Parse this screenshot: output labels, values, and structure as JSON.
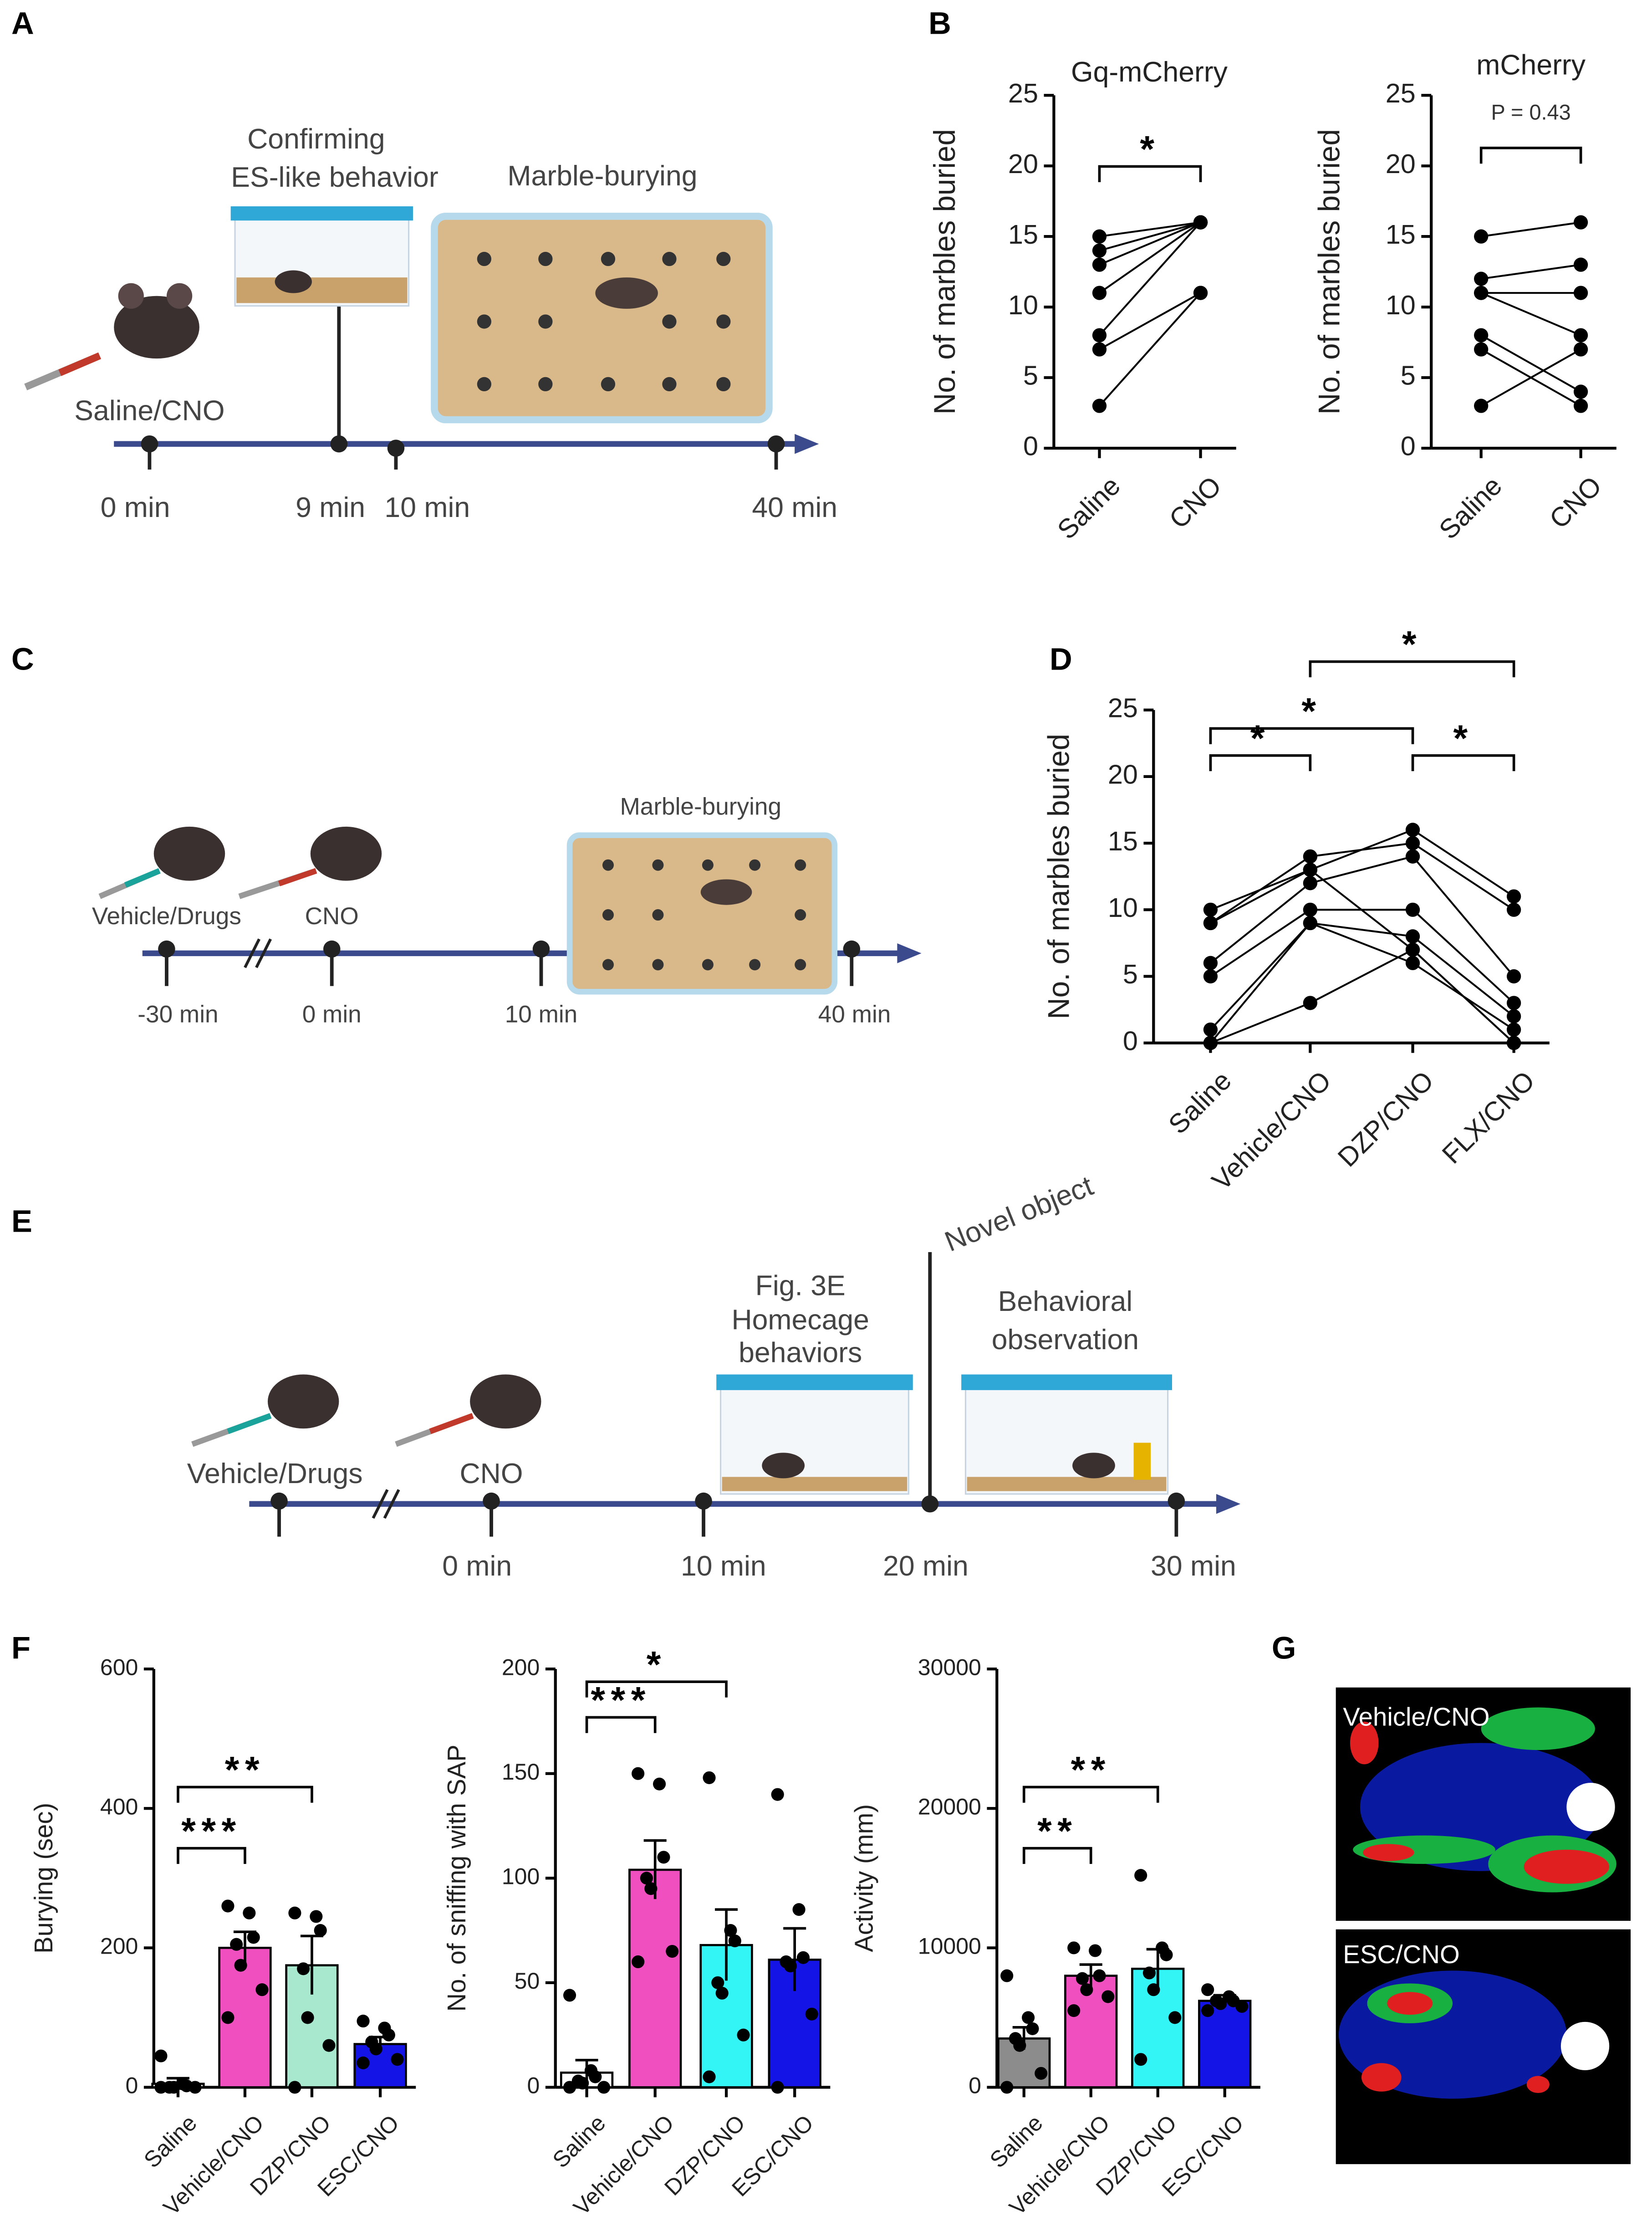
{
  "panel_labels": [
    "A",
    "B",
    "C",
    "D",
    "E",
    "F",
    "G"
  ],
  "diagrams": {
    "A": {
      "stage_1": [
        "Confirming",
        "ES-like behavior"
      ],
      "stage_2": "Marble-burying",
      "injection": "Saline/CNO",
      "times": [
        "0 min",
        "9 min",
        "10 min",
        "40 min"
      ]
    },
    "C": {
      "injection_1": "Vehicle/Drugs",
      "injection_2": "CNO",
      "stage": "Marble-burying",
      "times": [
        "-30 min",
        "0 min",
        "10 min",
        "40 min"
      ]
    },
    "E": {
      "injection_1": "Vehicle/Drugs",
      "injection_2": "CNO",
      "stage_1": [
        "Fig. 3E",
        "Homecage",
        "behaviors"
      ],
      "event": "Novel object",
      "stage_2": [
        "Behavioral",
        "observation"
      ],
      "times": [
        "0 min",
        "10 min",
        "20 min",
        "30 min"
      ]
    },
    "G": {
      "heatmap_labels": [
        "Vehicle/CNO",
        "ESC/CNO"
      ]
    }
  },
  "chart_data": [
    {
      "type": "paired",
      "title": "Gq-mCherry",
      "ylabel": "No. of marbles buried",
      "categories": [
        "Saline",
        "CNO"
      ],
      "ylim": [
        0,
        25
      ],
      "yticks": [
        0,
        5,
        10,
        15,
        20,
        25
      ],
      "color": "#000000",
      "series": [
        {
          "values": [
            15,
            16
          ]
        },
        {
          "values": [
            14,
            16
          ]
        },
        {
          "values": [
            13,
            16
          ]
        },
        {
          "values": [
            11,
            16
          ]
        },
        {
          "values": [
            8,
            16
          ]
        },
        {
          "values": [
            7,
            11
          ]
        },
        {
          "values": [
            3,
            11
          ]
        }
      ],
      "comparisons": [
        {
          "from": 0,
          "to": 1,
          "label": "*"
        }
      ]
    },
    {
      "type": "paired",
      "title": "mCherry",
      "ylabel": "No. of marbles buried",
      "categories": [
        "Saline",
        "CNO"
      ],
      "ylim": [
        0,
        25
      ],
      "yticks": [
        0,
        5,
        10,
        15,
        20,
        25
      ],
      "color": "#000000",
      "series": [
        {
          "values": [
            15,
            16
          ]
        },
        {
          "values": [
            12,
            13
          ]
        },
        {
          "values": [
            11,
            8
          ]
        },
        {
          "values": [
            11,
            11
          ]
        },
        {
          "values": [
            8,
            4
          ]
        },
        {
          "values": [
            7,
            3
          ]
        },
        {
          "values": [
            3,
            7
          ]
        }
      ],
      "comparisons": [
        {
          "from": 0,
          "to": 1,
          "label": "P = 0.43"
        }
      ]
    },
    {
      "type": "paired",
      "ylabel": "No. of marbles buried",
      "categories": [
        "Saline",
        "Vehicle/CNO",
        "DZP/CNO",
        "FLX/CNO"
      ],
      "ylim": [
        0,
        25
      ],
      "yticks": [
        0,
        5,
        10,
        15,
        20,
        25
      ],
      "color": "#000000",
      "series": [
        {
          "values": [
            10,
            13,
            16,
            11
          ]
        },
        {
          "values": [
            9,
            14,
            15,
            10
          ]
        },
        {
          "values": [
            6,
            12,
            14,
            5
          ]
        },
        {
          "values": [
            5,
            10,
            10,
            3
          ]
        },
        {
          "values": [
            1,
            9,
            8,
            2
          ]
        },
        {
          "values": [
            0,
            3,
            7,
            0
          ]
        },
        {
          "values": [
            0,
            9,
            6,
            1
          ]
        },
        {
          "values": [
            9,
            13,
            7,
            0
          ]
        }
      ],
      "comparisons": [
        {
          "from": 0,
          "to": 1,
          "label": "*"
        },
        {
          "from": 0,
          "to": 2,
          "label": "*"
        },
        {
          "from": 1,
          "to": 3,
          "label": "*"
        },
        {
          "from": 2,
          "to": 3,
          "label": "*"
        }
      ]
    },
    {
      "type": "bar_dots",
      "ylabel": "Burying (sec)",
      "categories": [
        "Saline",
        "Vehicle/CNO",
        "DZP/CNO",
        "ESC/CNO"
      ],
      "ylim": [
        0,
        600
      ],
      "yticks": [
        0,
        200,
        400,
        600
      ],
      "values": [
        5,
        200,
        175,
        62
      ],
      "errors": [
        8,
        23,
        42,
        10
      ],
      "colors": [
        "#ffffff",
        "#f04fc0",
        "#a8e8cf",
        "#1414e6"
      ],
      "points": [
        [
          45,
          5,
          2,
          0,
          0,
          0,
          0
        ],
        [
          260,
          250,
          215,
          205,
          175,
          140,
          100
        ],
        [
          250,
          245,
          225,
          170,
          100,
          60,
          0
        ],
        [
          95,
          85,
          75,
          65,
          55,
          40,
          35
        ]
      ],
      "comparisons": [
        {
          "from": 0,
          "to": 1,
          "label": "***"
        },
        {
          "from": 0,
          "to": 2,
          "label": "**"
        }
      ]
    },
    {
      "type": "bar_dots",
      "ylabel": "No. of sniffing with SAP",
      "categories": [
        "Saline",
        "Vehicle/CNO",
        "DZP/CNO",
        "ESC/CNO"
      ],
      "ylim": [
        0,
        200
      ],
      "yticks": [
        0,
        50,
        100,
        150,
        200
      ],
      "values": [
        7,
        104,
        68,
        61
      ],
      "errors": [
        6,
        14,
        17,
        15
      ],
      "colors": [
        "#ffffff",
        "#f04fc0",
        "#33f5f5",
        "#1414e6"
      ],
      "points": [
        [
          44,
          8,
          5,
          3,
          2,
          0,
          0
        ],
        [
          150,
          145,
          110,
          100,
          95,
          65,
          60
        ],
        [
          148,
          75,
          70,
          50,
          45,
          25,
          5
        ],
        [
          140,
          85,
          62,
          60,
          58,
          35,
          0
        ]
      ],
      "comparisons": [
        {
          "from": 0,
          "to": 1,
          "label": "***"
        },
        {
          "from": 0,
          "to": 2,
          "label": "*"
        }
      ]
    },
    {
      "type": "bar_dots",
      "ylabel": "Activity (mm)",
      "categories": [
        "Saline",
        "Vehicle/CNO",
        "DZP/CNO",
        "ESC/CNO"
      ],
      "ylim": [
        0,
        30000
      ],
      "yticks": [
        0,
        10000,
        20000,
        30000
      ],
      "values": [
        3500,
        8000,
        8500,
        6200
      ],
      "errors": [
        800,
        800,
        1400,
        400
      ],
      "colors": [
        "#8c8c8c",
        "#f04fc0",
        "#33f5f5",
        "#1414e6"
      ],
      "points": [
        [
          8000,
          5000,
          4200,
          3500,
          3000,
          1000,
          0
        ],
        [
          10000,
          9800,
          8000,
          7800,
          7000,
          6500,
          5500
        ],
        [
          15200,
          10000,
          9500,
          8200,
          7000,
          5000,
          2000
        ],
        [
          7000,
          6500,
          6200,
          6200,
          6000,
          5800,
          5500
        ]
      ],
      "comparisons": [
        {
          "from": 0,
          "to": 1,
          "label": "**"
        },
        {
          "from": 0,
          "to": 2,
          "label": "**"
        }
      ]
    }
  ]
}
